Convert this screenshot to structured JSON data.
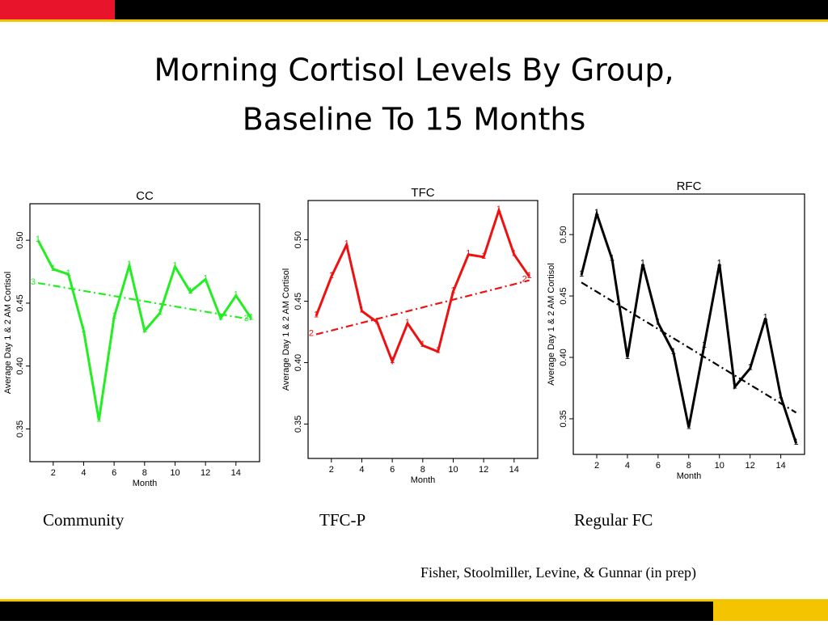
{
  "slide": {
    "title": [
      "Morning Cortisol Levels By Group,",
      "Baseline To 15 Months"
    ],
    "captions": [
      "Community",
      "TFC-P",
      "Regular FC"
    ],
    "citation": "Fisher, Stoolmiller, Levine, & Gunnar (in prep)"
  },
  "chart_data": [
    {
      "type": "line",
      "title": "CC",
      "xlabel": "Month",
      "ylabel": "Average Day 1 & 2 AM Cortisol",
      "x": [
        1,
        2,
        3,
        4,
        5,
        6,
        7,
        8,
        9,
        10,
        11,
        12,
        13,
        14,
        15
      ],
      "xlim": [
        0.47,
        15.55
      ],
      "xticks": [
        2,
        4,
        6,
        8,
        10,
        12,
        14
      ],
      "ylim": [
        0.324,
        0.529
      ],
      "yticks": [
        0.35,
        {
          "value": 0.4,
          "label": "0.40"
        },
        0.45,
        {
          "value": 0.5,
          "label": "0.50"
        }
      ],
      "series": [
        {
          "color": "#22ee22",
          "marker": "1",
          "values": [
            0.5,
            0.477,
            0.473,
            0.428,
            0.357,
            0.439,
            0.48,
            0.428,
            0.442,
            0.479,
            0.459,
            0.469,
            0.438,
            0.456,
            0.438
          ]
        },
        {
          "color": "#22ee22",
          "marker": "3",
          "style": "dashdot",
          "x": [
            1,
            15
          ],
          "values": [
            0.466,
            0.437
          ]
        }
      ]
    },
    {
      "type": "line",
      "title": "TFC",
      "xlabel": "Month",
      "ylabel": "Average Day 1 & 2 AM Cortisol",
      "x": [
        1,
        2,
        3,
        4,
        5,
        6,
        7,
        8,
        9,
        10,
        11,
        12,
        13,
        14,
        15
      ],
      "xlim": [
        0.47,
        15.55
      ],
      "xticks": [
        2,
        4,
        6,
        8,
        10,
        12,
        14
      ],
      "ylim": [
        0.322,
        0.532
      ],
      "yticks": [
        0.35,
        {
          "value": 0.4,
          "label": "0.40"
        },
        0.45,
        {
          "value": 0.5,
          "label": "0.50"
        }
      ],
      "series": [
        {
          "color": "#ee1111",
          "marker": "1",
          "values": [
            0.438,
            0.47,
            0.496,
            0.442,
            0.433,
            0.401,
            0.432,
            0.414,
            0.409,
            0.458,
            0.488,
            0.486,
            0.524,
            0.488,
            0.47
          ]
        },
        {
          "color": "#ee1111",
          "marker": "2",
          "style": "dashdot",
          "x": [
            1,
            15
          ],
          "values": [
            0.423,
            0.467
          ]
        }
      ]
    },
    {
      "type": "line",
      "title": "RFC",
      "xlabel": "Month",
      "ylabel": "Average Day 1 & 2 AM Cortisol",
      "x": [
        1,
        2,
        3,
        4,
        5,
        6,
        7,
        8,
        9,
        10,
        11,
        12,
        13,
        14,
        15
      ],
      "xlim": [
        0.47,
        15.55
      ],
      "xticks": [
        2,
        4,
        6,
        8,
        10,
        12,
        14
      ],
      "ylim": [
        0.321,
        0.533
      ],
      "yticks": [
        0.35,
        {
          "value": 0.4,
          "label": "0.40"
        },
        0.45,
        {
          "value": 0.5,
          "label": "0.50"
        }
      ],
      "series": [
        {
          "color": "#000000",
          "marker": "1",
          "values": [
            0.467,
            0.517,
            0.48,
            0.4,
            0.476,
            0.428,
            0.404,
            0.343,
            0.409,
            0.476,
            0.376,
            0.391,
            0.432,
            0.368,
            0.33
          ]
        },
        {
          "color": "#000000",
          "style": "dashdot",
          "x": [
            1,
            15
          ],
          "values": [
            0.461,
            0.355
          ]
        }
      ]
    }
  ]
}
